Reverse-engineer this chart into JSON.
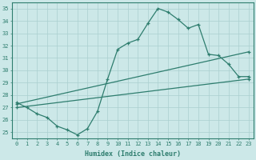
{
  "xlabel": "Humidex (Indice chaleur)",
  "ylabel": "",
  "bg_color": "#cce8e8",
  "line_color": "#2e7d6e",
  "grid_color": "#aacfcf",
  "xlim": [
    -0.5,
    23.5
  ],
  "ylim": [
    24.5,
    35.5
  ],
  "xticks": [
    0,
    1,
    2,
    3,
    4,
    5,
    6,
    7,
    8,
    9,
    10,
    11,
    12,
    13,
    14,
    15,
    16,
    17,
    18,
    19,
    20,
    21,
    22,
    23
  ],
  "yticks": [
    25,
    26,
    27,
    28,
    29,
    30,
    31,
    32,
    33,
    34,
    35
  ],
  "line1_wavy": {
    "x": [
      0,
      1,
      2,
      3,
      4,
      5,
      6,
      7,
      8,
      9,
      10,
      11,
      12,
      13,
      14,
      15,
      16,
      17,
      18,
      19,
      20,
      21,
      22,
      23
    ],
    "y": [
      27.4,
      27.0,
      26.5,
      26.2,
      25.5,
      25.2,
      24.8,
      25.3,
      26.7,
      29.3,
      31.7,
      32.2,
      32.5,
      33.8,
      35.0,
      34.7,
      34.1,
      33.4,
      33.7,
      31.3,
      31.2,
      30.5,
      29.5,
      29.5
    ]
  },
  "line2_straight": {
    "x": [
      0,
      23
    ],
    "y": [
      27.3,
      31.5
    ]
  },
  "line3_straight": {
    "x": [
      0,
      23
    ],
    "y": [
      27.0,
      29.3
    ]
  }
}
